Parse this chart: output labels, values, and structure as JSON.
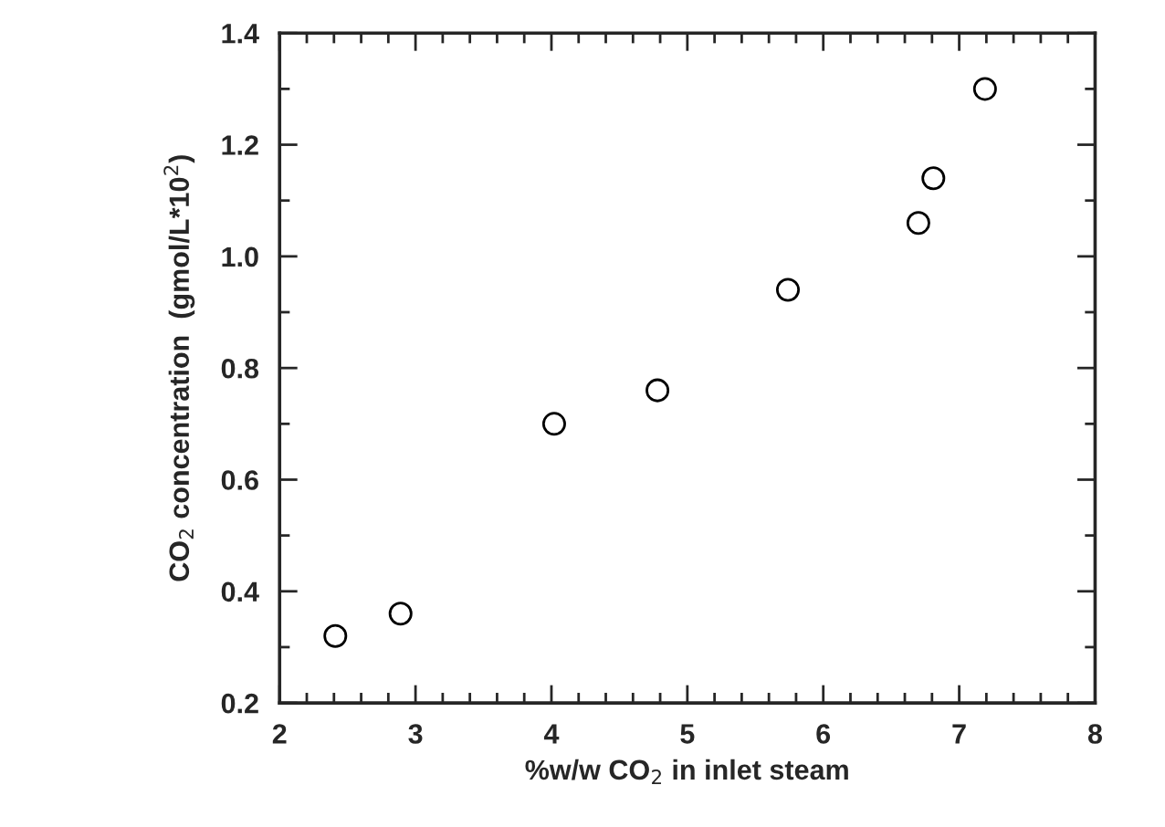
{
  "chart_data": {
    "type": "scatter",
    "xlabel": "%w/w CO$_{2}$ in inlet steam",
    "ylabel": "CO$_{2}$ concentration  (gmol/L*10$^{2}$)",
    "x": [
      2.41,
      2.89,
      4.02,
      4.78,
      5.74,
      6.7,
      6.81,
      7.19
    ],
    "series": [
      {
        "color": "#000000",
        "values": [
          0.32,
          0.36,
          0.7,
          0.76,
          0.94,
          1.06,
          1.14,
          1.3
        ]
      }
    ],
    "xlim": [
      2,
      8
    ],
    "xticks": [
      2,
      3,
      4,
      5,
      6,
      7,
      8
    ],
    "ylim": [
      0.2,
      1.4
    ],
    "yticks": [
      {
        "value": 0.2,
        "label": "0.2"
      },
      {
        "value": 0.4,
        "label": "0.4"
      },
      {
        "value": 0.6,
        "label": "0.6"
      },
      {
        "value": 0.8,
        "label": "0.8"
      },
      {
        "value": 1.0,
        "label": "1.0"
      },
      {
        "value": 1.2,
        "label": "1.2"
      },
      {
        "value": 1.4,
        "label": "1.4"
      }
    ],
    "marker": "circle",
    "grid": false,
    "legend": false
  }
}
